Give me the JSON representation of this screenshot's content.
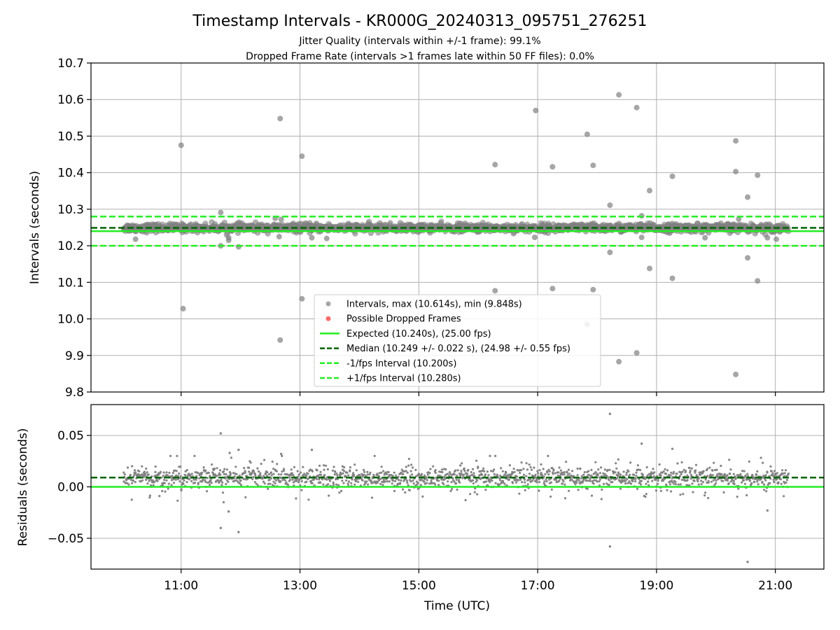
{
  "title": "Timestamp Intervals - KR000G_20240313_095751_276251",
  "subtitle_lines": [
    "Jitter Quality (intervals within +/-1 frame): 99.1%",
    "Dropped Frame Rate (intervals >1 frames late within 50 FF files): 0.0%"
  ],
  "colors": {
    "points": "#808080",
    "dropped": "#ff5050",
    "expected": "#22ee22",
    "median": "#006400",
    "bounds": "#22ee22",
    "grid": "#b0b0b0"
  },
  "chart_data": [
    {
      "type": "scatter",
      "ylabel": "Intervals (seconds)",
      "xlabel": "",
      "xlim": [
        "09:29",
        "21:49"
      ],
      "ylim": [
        9.8,
        10.7
      ],
      "yticks": [
        9.8,
        9.9,
        10.0,
        10.1,
        10.2,
        10.3,
        10.4,
        10.5,
        10.6,
        10.7
      ],
      "ytick_labels": [
        "9.8",
        "9.9",
        "10.0",
        "10.1",
        "10.2",
        "10.3",
        "10.4",
        "10.5",
        "10.6",
        "10.7"
      ],
      "xticks": [
        "11:00",
        "13:00",
        "15:00",
        "17:00",
        "19:00",
        "21:00"
      ],
      "grid": true,
      "legend_position": "lower-center",
      "legend": [
        "Intervals, max (10.614s), min (9.848s)",
        "Possible Dropped Frames",
        "Expected (10.240s), (25.00 fps)",
        "Median (10.249 +/- 0.022 s), (24.98 +/- 0.55 fps)",
        "-1/fps Interval (10.200s)",
        "+1/fps Interval (10.280s)"
      ],
      "lines": {
        "expected": 10.24,
        "median": 10.249,
        "lower": 10.2,
        "upper": 10.28
      },
      "data_span": [
        "10:02",
        "21:13"
      ],
      "typical_band": [
        10.225,
        10.27
      ],
      "outliers": [
        [
          "10:14",
          10.218
        ],
        [
          "11:00",
          10.475
        ],
        [
          "11:02",
          10.028
        ],
        [
          "11:40",
          10.291
        ],
        [
          "11:40",
          10.2
        ],
        [
          "11:48",
          10.215
        ],
        [
          "11:48",
          10.222
        ],
        [
          "11:58",
          10.197
        ],
        [
          "12:35",
          10.275
        ],
        [
          "12:39",
          10.225
        ],
        [
          "12:41",
          10.272
        ],
        [
          "12:40",
          10.548
        ],
        [
          "12:40",
          9.942
        ],
        [
          "13:02",
          10.445
        ],
        [
          "13:02",
          10.055
        ],
        [
          "13:12",
          10.222
        ],
        [
          "13:27",
          10.22
        ],
        [
          "16:17",
          10.422
        ],
        [
          "16:17",
          10.077
        ],
        [
          "16:57",
          10.223
        ],
        [
          "16:58",
          10.57
        ],
        [
          "17:15",
          10.416
        ],
        [
          "17:15",
          10.083
        ],
        [
          "17:50",
          10.505
        ],
        [
          "17:50",
          9.985
        ],
        [
          "17:56",
          10.42
        ],
        [
          "17:56",
          10.08
        ],
        [
          "18:13",
          10.311
        ],
        [
          "18:13",
          10.182
        ],
        [
          "18:22",
          10.613
        ],
        [
          "18:22",
          9.883
        ],
        [
          "18:40",
          10.578
        ],
        [
          "18:40",
          9.907
        ],
        [
          "18:45",
          10.282
        ],
        [
          "18:45",
          10.223
        ],
        [
          "18:53",
          10.351
        ],
        [
          "18:53",
          10.138
        ],
        [
          "19:16",
          10.39
        ],
        [
          "19:16",
          10.111
        ],
        [
          "19:49",
          10.222
        ],
        [
          "20:20",
          10.487
        ],
        [
          "20:20",
          10.403
        ],
        [
          "20:20",
          9.848
        ],
        [
          "20:23",
          10.273
        ],
        [
          "20:32",
          10.333
        ],
        [
          "20:32",
          10.167
        ],
        [
          "20:42",
          10.393
        ],
        [
          "20:42",
          10.104
        ],
        [
          "20:52",
          10.222
        ],
        [
          "21:01",
          10.218
        ]
      ]
    },
    {
      "type": "scatter",
      "ylabel": "Residuals (seconds)",
      "xlabel": "Time (UTC)",
      "xlim": [
        "09:29",
        "21:49"
      ],
      "ylim": [
        -0.08,
        0.08
      ],
      "yticks": [
        -0.05,
        0.0,
        0.05
      ],
      "ytick_labels": [
        "−0.05",
        "0.00",
        "0.05"
      ],
      "xticks": [
        "11:00",
        "13:00",
        "15:00",
        "17:00",
        "19:00",
        "21:00"
      ],
      "xtick_labels": [
        "11:00",
        "13:00",
        "15:00",
        "17:00",
        "19:00",
        "21:00"
      ],
      "grid": true,
      "lines": {
        "expected": 0.0,
        "median": 0.009
      },
      "data_span": [
        "10:02",
        "21:13"
      ],
      "typical_band": [
        -0.015,
        0.03
      ],
      "outliers": [
        [
          "11:40",
          0.052
        ],
        [
          "11:40",
          -0.04
        ],
        [
          "11:48",
          -0.024
        ],
        [
          "11:58",
          -0.044
        ],
        [
          "11:58",
          0.036
        ],
        [
          "12:41",
          0.032
        ],
        [
          "13:12",
          0.036
        ],
        [
          "18:13",
          0.071
        ],
        [
          "18:13",
          -0.058
        ],
        [
          "18:45",
          0.042
        ],
        [
          "19:16",
          0.037
        ],
        [
          "20:32",
          -0.073
        ],
        [
          "20:52",
          -0.023
        ],
        [
          "11:49",
          0.033
        ]
      ]
    }
  ]
}
